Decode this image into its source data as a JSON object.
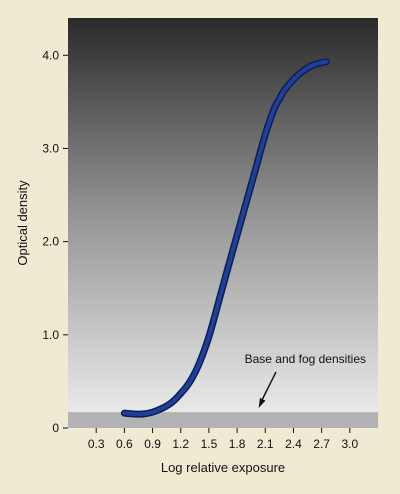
{
  "chart_data": {
    "type": "line",
    "xlabel": "Log relative exposure",
    "ylabel": "Optical density",
    "xlim": [
      0,
      3.3
    ],
    "ylim": [
      0,
      4.4
    ],
    "x_ticks": [
      0.3,
      0.6,
      0.9,
      1.2,
      1.5,
      1.8,
      2.1,
      2.4,
      2.7,
      3.0
    ],
    "x_tick_labels": [
      "0.3",
      "0.6",
      "0.9",
      "1.2",
      "1.5",
      "1.8",
      "2.1",
      "2.4",
      "2.7",
      "3.0"
    ],
    "y_ticks": [
      0,
      1,
      2,
      3,
      4
    ],
    "y_tick_labels": [
      "0",
      "1.0",
      "2.0",
      "3.0",
      "4.0"
    ],
    "grid": false,
    "fog_level": 0.17,
    "annotation": "Base and fog densities",
    "series": [
      {
        "color": "#1f3f98",
        "x": [
          0.6,
          0.7,
          0.8,
          0.9,
          1.0,
          1.1,
          1.2,
          1.3,
          1.4,
          1.5,
          1.6,
          1.7,
          1.8,
          1.9,
          2.0,
          2.1,
          2.2,
          2.25,
          2.3,
          2.4,
          2.5,
          2.6,
          2.7,
          2.75
        ],
        "y": [
          0.16,
          0.15,
          0.15,
          0.17,
          0.21,
          0.27,
          0.37,
          0.5,
          0.7,
          0.98,
          1.34,
          1.71,
          2.07,
          2.43,
          2.79,
          3.15,
          3.44,
          3.53,
          3.62,
          3.74,
          3.83,
          3.89,
          3.92,
          3.93
        ]
      }
    ],
    "colors": {
      "page_background": "#f1ead2",
      "plot_top": "#2a2a2a",
      "plot_bottom": "#f0f0f0",
      "fog_band": "#b3b3b3",
      "curve": "#1f3f98",
      "curve_edge": "#0d1d55"
    }
  }
}
